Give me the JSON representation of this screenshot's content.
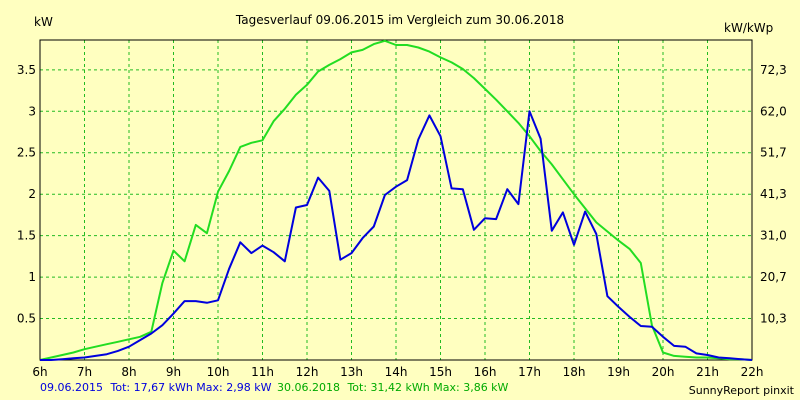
{
  "chart_data": {
    "type": "line",
    "title": "Tagesverlauf 09.06.2015 im Vergleich zum 30.06.2018",
    "ylabel": "kW",
    "y2label": "kW/kWp",
    "xlim": [
      6,
      22
    ],
    "ylim": [
      0,
      3.86
    ],
    "grid": true,
    "x_ticks": [
      6,
      7,
      8,
      9,
      10,
      11,
      12,
      13,
      14,
      15,
      16,
      17,
      18,
      19,
      20,
      21,
      22
    ],
    "x_tick_labels": [
      "6h",
      "7h",
      "8h",
      "9h",
      "10h",
      "11h",
      "12h",
      "13h",
      "14h",
      "15h",
      "16h",
      "17h",
      "18h",
      "19h",
      "20h",
      "21h",
      "22h"
    ],
    "y_ticks": [
      0.5,
      1,
      1.5,
      2,
      2.5,
      3,
      3.5
    ],
    "y_tick_labels": [
      "0.5",
      "1",
      "1.5",
      "2",
      "2.5",
      "3",
      "3.5"
    ],
    "y2_ticks": [
      0.5,
      1,
      1.5,
      2,
      2.5,
      3,
      3.5
    ],
    "y2_tick_labels": [
      "10,3",
      "20,7",
      "31,0",
      "41,3",
      "51,7",
      "62,0",
      "72,3"
    ],
    "series": [
      {
        "name": "09.06.2015",
        "color": "#0000dd",
        "x": [
          6.0,
          6.25,
          6.5,
          6.75,
          7.0,
          7.25,
          7.5,
          7.75,
          8.0,
          8.25,
          8.5,
          8.75,
          9.0,
          9.25,
          9.5,
          9.75,
          10.0,
          10.25,
          10.5,
          10.75,
          11.0,
          11.25,
          11.5,
          11.75,
          12.0,
          12.25,
          12.5,
          12.75,
          13.0,
          13.25,
          13.5,
          13.75,
          14.0,
          14.25,
          14.5,
          14.75,
          15.0,
          15.25,
          15.5,
          15.75,
          16.0,
          16.25,
          16.5,
          16.75,
          17.0,
          17.25,
          17.5,
          17.75,
          18.0,
          18.25,
          18.5,
          18.75,
          19.0,
          19.25,
          19.5,
          19.75,
          20.0,
          20.25,
          20.5,
          20.75,
          21.0,
          21.25,
          21.5,
          21.75,
          22.0
        ],
        "values": [
          0,
          0,
          0.01,
          0.02,
          0.03,
          0.05,
          0.07,
          0.11,
          0.16,
          0.24,
          0.32,
          0.42,
          0.56,
          0.71,
          0.71,
          0.69,
          0.72,
          1.1,
          1.42,
          1.29,
          1.38,
          1.3,
          1.19,
          1.84,
          1.87,
          2.2,
          2.04,
          1.21,
          1.29,
          1.47,
          1.61,
          1.99,
          2.09,
          2.17,
          2.66,
          2.95,
          2.7,
          2.07,
          2.06,
          1.57,
          1.71,
          1.7,
          2.06,
          1.88,
          3.0,
          2.67,
          1.56,
          1.78,
          1.39,
          1.79,
          1.52,
          0.77,
          0.64,
          0.52,
          0.41,
          0.4,
          0.28,
          0.17,
          0.16,
          0.08,
          0.06,
          0.03,
          0.02,
          0.01,
          0
        ]
      },
      {
        "name": "30.06.2018",
        "color": "#22dd22",
        "x": [
          6.0,
          6.25,
          6.5,
          6.75,
          7.0,
          7.25,
          7.5,
          7.75,
          8.0,
          8.25,
          8.5,
          8.75,
          9.0,
          9.25,
          9.5,
          9.75,
          10.0,
          10.25,
          10.5,
          10.75,
          11.0,
          11.25,
          11.5,
          11.75,
          12.0,
          12.25,
          12.5,
          12.75,
          13.0,
          13.25,
          13.5,
          13.75,
          14.0,
          14.25,
          14.5,
          14.75,
          15.0,
          15.25,
          15.5,
          15.75,
          16.0,
          16.25,
          16.5,
          16.75,
          17.0,
          17.25,
          17.5,
          17.75,
          18.0,
          18.25,
          18.5,
          18.75,
          19.0,
          19.25,
          19.5,
          19.75,
          20.0,
          20.25,
          20.5,
          20.75,
          21.0,
          21.25,
          21.5,
          21.75,
          22.0
        ],
        "values": [
          0,
          0.03,
          0.06,
          0.09,
          0.13,
          0.16,
          0.19,
          0.22,
          0.25,
          0.28,
          0.34,
          0.93,
          1.32,
          1.19,
          1.63,
          1.53,
          2.03,
          2.28,
          2.57,
          2.62,
          2.65,
          2.88,
          3.03,
          3.2,
          3.32,
          3.48,
          3.56,
          3.63,
          3.71,
          3.74,
          3.81,
          3.85,
          3.8,
          3.8,
          3.77,
          3.72,
          3.65,
          3.59,
          3.51,
          3.4,
          3.27,
          3.14,
          3.0,
          2.86,
          2.7,
          2.52,
          2.36,
          2.18,
          2.0,
          1.83,
          1.66,
          1.55,
          1.44,
          1.34,
          1.17,
          0.42,
          0.09,
          0.05,
          0.04,
          0.03,
          0.03,
          0.02,
          0.01,
          0.01,
          0
        ]
      }
    ],
    "footer": {
      "left_date": "09.06.2015",
      "left_stats": "Tot: 17,67 kWh Max: 2,98 kW",
      "mid_date": "30.06.2018",
      "mid_stats": "Tot: 31,42 kWh Max: 3,86 kW",
      "brand": "SunnyReport pinxit"
    }
  }
}
